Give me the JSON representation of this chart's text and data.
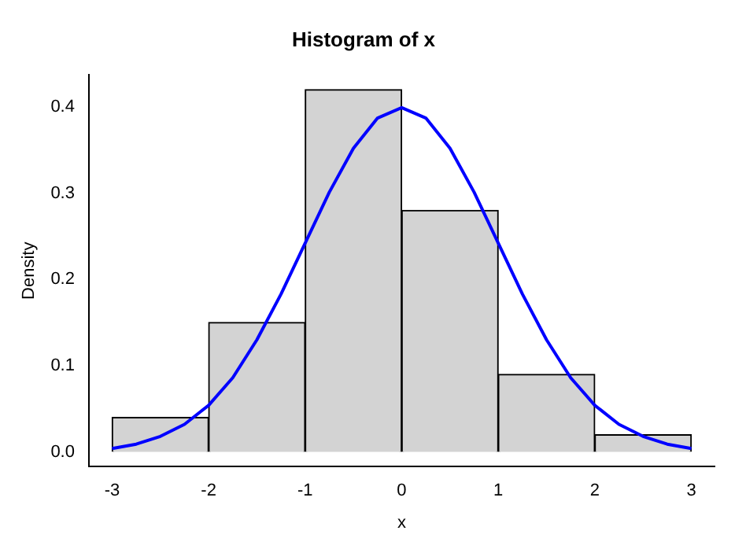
{
  "chart_data": {
    "type": "histogram",
    "title": "Histogram of x",
    "xlabel": "x",
    "ylabel": "Density",
    "series": [
      {
        "color": "#d3d3d3",
        "bins": [
          -3,
          -2,
          -1,
          0,
          1,
          2,
          3
        ],
        "values": [
          0.04,
          0.15,
          0.42,
          0.28,
          0.09,
          0.02
        ]
      },
      {
        "type": "line",
        "color": "#0000ff",
        "x": [
          -3,
          -2.75,
          -2.5,
          -2.25,
          -2,
          -1.75,
          -1.5,
          -1.25,
          -1,
          -0.75,
          -0.5,
          -0.25,
          0,
          0.25,
          0.5,
          0.75,
          1,
          1.25,
          1.5,
          1.75,
          2,
          2.25,
          2.5,
          2.75,
          3
        ],
        "values": [
          0.004,
          0.009,
          0.018,
          0.032,
          0.054,
          0.086,
          0.13,
          0.183,
          0.242,
          0.301,
          0.352,
          0.387,
          0.399,
          0.387,
          0.352,
          0.301,
          0.242,
          0.183,
          0.13,
          0.086,
          0.054,
          0.032,
          0.018,
          0.009,
          0.004
        ]
      }
    ],
    "xlim": [
      -3.24,
      3.24
    ],
    "xticks": [
      -3,
      -2,
      -1,
      0,
      1,
      2,
      3
    ],
    "ylim": [
      -0.017,
      0.437
    ],
    "yticks": [
      {
        "value": 0,
        "label": "0.0"
      },
      {
        "value": 0.1,
        "label": "0.1"
      },
      {
        "value": 0.2,
        "label": "0.2"
      },
      {
        "value": 0.3,
        "label": "0.3"
      },
      {
        "value": 0.4,
        "label": "0.4"
      }
    ],
    "grid": false,
    "legend": false,
    "marker": "none"
  }
}
